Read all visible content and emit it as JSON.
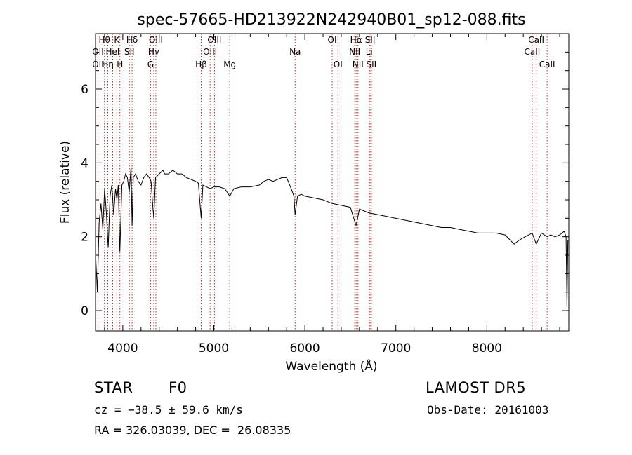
{
  "chart_data": {
    "type": "line",
    "title": "spec-57665-HD213922N242940B01_sp12-088.fits",
    "xlabel": "Wavelength (Å)",
    "ylabel": "Flux (relative)",
    "xlim": [
      3700,
      8900
    ],
    "ylim": [
      -0.55,
      7.5
    ],
    "x_ticks": [
      4000,
      5000,
      6000,
      7000,
      8000
    ],
    "y_ticks": [
      0,
      2,
      4,
      6
    ],
    "grid": false,
    "series": [
      {
        "x": [
          3700,
          3720,
          3740,
          3760,
          3780,
          3800,
          3820,
          3840,
          3860,
          3880,
          3900,
          3920,
          3935,
          3950,
          3968,
          3990,
          4010,
          4030,
          4050,
          4070,
          4090,
          4102,
          4115,
          4140,
          4170,
          4200,
          4230,
          4260,
          4290,
          4310,
          4330,
          4340,
          4360,
          4400,
          4440,
          4460,
          4500,
          4550,
          4600,
          4650,
          4700,
          4750,
          4800,
          4830,
          4861,
          4880,
          4920,
          4960,
          5000,
          5060,
          5120,
          5175,
          5220,
          5300,
          5400,
          5500,
          5550,
          5600,
          5650,
          5700,
          5750,
          5800,
          5850,
          5880,
          5893,
          5920,
          5960,
          6000,
          6100,
          6200,
          6300,
          6400,
          6500,
          6563,
          6600,
          6700,
          6800,
          6900,
          7000,
          7100,
          7200,
          7300,
          7400,
          7500,
          7600,
          7700,
          7800,
          7900,
          8000,
          8100,
          8200,
          8300,
          8350,
          8420,
          8498,
          8542,
          8600,
          8662,
          8700,
          8750,
          8800,
          8850,
          8870,
          8880,
          8890
        ],
        "y": [
          1.6,
          0.5,
          2.4,
          2.9,
          2.2,
          3.3,
          2.6,
          1.7,
          3.1,
          3.4,
          2.6,
          3.3,
          3.0,
          3.4,
          1.6,
          3.4,
          3.5,
          3.7,
          3.6,
          3.2,
          3.9,
          2.3,
          3.6,
          3.7,
          3.5,
          3.4,
          3.6,
          3.7,
          3.6,
          3.5,
          2.8,
          2.5,
          3.6,
          3.7,
          3.8,
          3.7,
          3.7,
          3.8,
          3.7,
          3.7,
          3.6,
          3.55,
          3.5,
          3.45,
          2.5,
          3.4,
          3.35,
          3.3,
          3.35,
          3.35,
          3.3,
          3.1,
          3.3,
          3.35,
          3.35,
          3.4,
          3.5,
          3.55,
          3.5,
          3.55,
          3.6,
          3.6,
          3.3,
          3.1,
          2.6,
          3.1,
          3.15,
          3.1,
          3.05,
          3.0,
          2.9,
          2.85,
          2.8,
          2.3,
          2.75,
          2.65,
          2.6,
          2.55,
          2.5,
          2.45,
          2.4,
          2.35,
          2.3,
          2.25,
          2.25,
          2.2,
          2.15,
          2.1,
          2.1,
          2.1,
          2.05,
          1.8,
          1.9,
          2.0,
          2.1,
          1.8,
          2.1,
          2.0,
          2.05,
          2.0,
          2.05,
          2.15,
          2.0,
          0.1,
          1.9
        ]
      }
    ],
    "lines": [
      {
        "label": "Hθ",
        "x": 3798,
        "row": 0
      },
      {
        "label": "OII",
        "x": 3727,
        "row": 1
      },
      {
        "label": "OII",
        "x": 3727,
        "row": 2
      },
      {
        "label": "Hη",
        "x": 3835,
        "row": 2
      },
      {
        "label": "HeI",
        "x": 3889,
        "row": 1
      },
      {
        "label": "K",
        "x": 3934,
        "row": 0
      },
      {
        "label": "H",
        "x": 3968,
        "row": 2
      },
      {
        "label": "Hδ",
        "x": 4102,
        "row": 0
      },
      {
        "label": "SII",
        "x": 4072,
        "row": 1
      },
      {
        "label": "OIII",
        "x": 4363,
        "row": 0
      },
      {
        "label": "Hγ",
        "x": 4340,
        "row": 1
      },
      {
        "label": "G",
        "x": 4305,
        "row": 2
      },
      {
        "label": "Hβ",
        "x": 4861,
        "row": 2
      },
      {
        "label": "OIII",
        "x": 5007,
        "row": 0
      },
      {
        "label": "OIII",
        "x": 4959,
        "row": 1
      },
      {
        "label": "Mg",
        "x": 5175,
        "row": 2
      },
      {
        "label": "Na",
        "x": 5893,
        "row": 1
      },
      {
        "label": "OI",
        "x": 6300,
        "row": 0
      },
      {
        "label": "OI",
        "x": 6364,
        "row": 2
      },
      {
        "label": "Hα",
        "x": 6563,
        "row": 0
      },
      {
        "label": "NII",
        "x": 6548,
        "row": 1
      },
      {
        "label": "NII",
        "x": 6584,
        "row": 2
      },
      {
        "label": "SII",
        "x": 6717,
        "row": 0
      },
      {
        "label": "Li",
        "x": 6707,
        "row": 1
      },
      {
        "label": "SII",
        "x": 6731,
        "row": 2
      },
      {
        "label": "CaII",
        "x": 8498,
        "row": 1
      },
      {
        "label": "CaII",
        "x": 8542,
        "row": 0
      },
      {
        "label": "CaII",
        "x": 8662,
        "row": 2
      }
    ]
  },
  "info": {
    "class": "STAR",
    "subclass": "F0",
    "survey": "LAMOST DR5",
    "cz": "cz = −38.5 ± 59.6 km/s",
    "obs_date": "Obs-Date: 20161003",
    "coords": "RA = 326.03039, DEC =  26.08335"
  }
}
